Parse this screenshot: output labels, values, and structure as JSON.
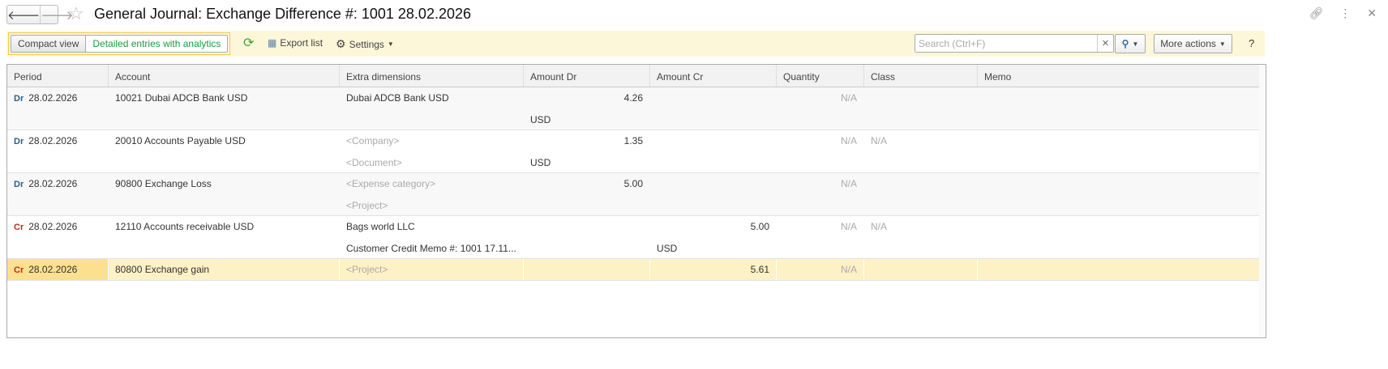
{
  "window": {
    "title": "General Journal: Exchange Difference #: 1001 28.02.2026",
    "icons": [
      "link-icon",
      "more-vertical-icon",
      "close-icon"
    ]
  },
  "toolbar": {
    "compact_view": "Compact view",
    "detailed_view": "Detailed entries with analytics",
    "export": "Export list",
    "settings": "Settings",
    "search_placeholder": "Search (Ctrl+F)",
    "search_value": "",
    "more_actions": "More actions",
    "help": "?"
  },
  "colors": {
    "accent_green": "#1a9d3f",
    "debit": "#2b5f8a",
    "credit": "#c8281e",
    "toolbar_bg": "#fdf7d9",
    "selected_row": "#fdf1c6"
  },
  "columns": [
    "Period",
    "Account",
    "Extra dimensions",
    "Amount Dr",
    "Amount Cr",
    "Quantity",
    "Class",
    "Memo"
  ],
  "rows": [
    {
      "type": "Dr",
      "period": "28.02.2026",
      "account": "10021 Dubai ADCB Bank USD",
      "dim1": "Dubai ADCB Bank USD",
      "dim1_muted": false,
      "dim2": "",
      "amount_dr": "4.26",
      "dr_currency": "USD",
      "amount_cr": "",
      "cr_currency": "",
      "quantity": "N/A",
      "class": "",
      "memo": ""
    },
    {
      "type": "Dr",
      "period": "28.02.2026",
      "account": "20010 Accounts Payable USD",
      "dim1": "<Company>",
      "dim1_muted": true,
      "dim2": "<Document>",
      "dim2_muted": true,
      "amount_dr": "1.35",
      "dr_currency": "USD",
      "amount_cr": "",
      "cr_currency": "",
      "quantity": "N/A",
      "class": "N/A",
      "memo": ""
    },
    {
      "type": "Dr",
      "period": "28.02.2026",
      "account": "90800 Exchange Loss",
      "dim1": "<Expense category>",
      "dim1_muted": true,
      "dim2": "<Project>",
      "dim2_muted": true,
      "amount_dr": "5.00",
      "dr_currency": "",
      "amount_cr": "",
      "cr_currency": "",
      "quantity": "N/A",
      "class": "",
      "memo": ""
    },
    {
      "type": "Cr",
      "period": "28.02.2026",
      "account": "12110 Accounts receivable USD",
      "dim1": "Bags world LLC",
      "dim1_muted": false,
      "dim2": "Customer Credit Memo #: 1001 17.11...",
      "dim2_muted": false,
      "amount_dr": "",
      "dr_currency": "",
      "amount_cr": "5.00",
      "cr_currency": "USD",
      "quantity": "N/A",
      "class": "N/A",
      "memo": ""
    },
    {
      "type": "Cr",
      "period": "28.02.2026",
      "account": "80800 Exchange gain",
      "dim1": "<Project>",
      "dim1_muted": true,
      "dim2": "",
      "amount_dr": "",
      "dr_currency": "",
      "amount_cr": "5.61",
      "cr_currency": "",
      "quantity": "N/A",
      "class": "",
      "memo": "",
      "selected": true
    }
  ]
}
